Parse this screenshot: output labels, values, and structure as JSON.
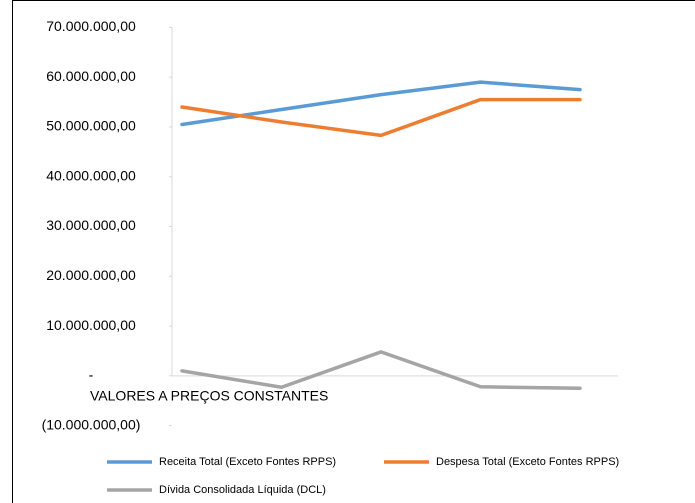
{
  "chart_data": {
    "type": "line",
    "categories": [
      null,
      null,
      null,
      null,
      null
    ],
    "series": [
      {
        "name": "Receita Total (Exceto Fontes RPPS)",
        "color": "#5b9bd5",
        "values": [
          50500000,
          53500000,
          56500000,
          59000000,
          57500000
        ]
      },
      {
        "name": "Despesa Total (Exceto Fontes RPPS)",
        "color": "#ed7d31",
        "values": [
          54000000,
          51000000,
          48300000,
          55500000,
          55500000
        ]
      },
      {
        "name": "Dívida Consolidada Líquida (DCL)",
        "color": "#a5a5a5",
        "values": [
          1000000,
          -2300000,
          4800000,
          -2200000,
          -2500000
        ]
      }
    ],
    "annotation": "VALORES A PREÇOS CONSTANTES",
    "ylim": [
      -10000000,
      70000000
    ],
    "yticks": [
      {
        "value": -10000000,
        "label": "(10.000.000,00)"
      },
      {
        "value": 0,
        "label": "-"
      },
      {
        "value": 10000000,
        "label": "10.000.000,00"
      },
      {
        "value": 20000000,
        "label": "20.000.000,00"
      },
      {
        "value": 30000000,
        "label": "30.000.000,00"
      },
      {
        "value": 40000000,
        "label": "40.000.000,00"
      },
      {
        "value": 50000000,
        "label": "50.000.000,00"
      },
      {
        "value": 60000000,
        "label": "60.000.000,00"
      },
      {
        "value": 70000000,
        "label": "70.000.000,00"
      }
    ],
    "grid": false
  }
}
